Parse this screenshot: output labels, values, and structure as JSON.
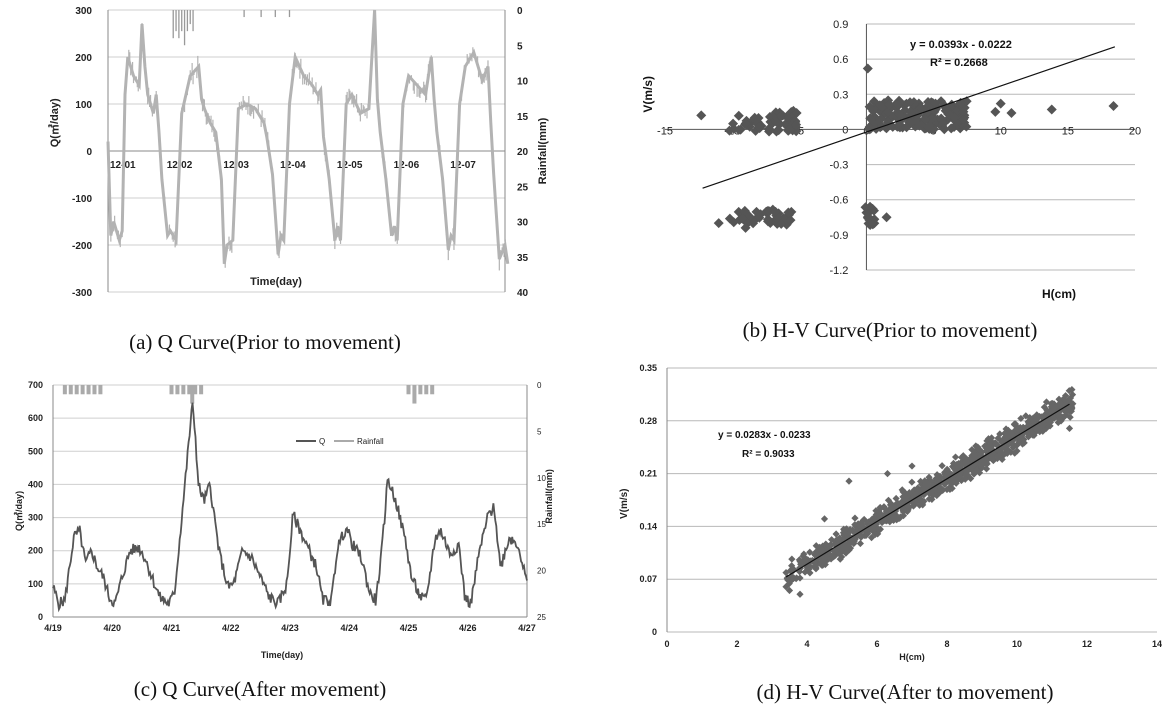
{
  "captions": {
    "a": "(a)  Q  Curve(Prior  to  movement)",
    "b": "(b)  H-V  Curve(Prior  to  movement)",
    "c": "(c)  Q  Curve(After  movement)",
    "d": "(d)  H-V  Curve(After  to  movement)"
  },
  "chart_data": [
    {
      "id": "a",
      "type": "line",
      "xlabel": "Time(day)",
      "ylabel": "Q(㎥/day)",
      "y2label": "Rainfall(mm)",
      "categories": [
        "12-01",
        "12-02",
        "12-03",
        "12-04",
        "12-05",
        "12-06",
        "12-07"
      ],
      "ylim": [
        -300,
        300
      ],
      "yticks": [
        -300,
        -200,
        -100,
        0,
        100,
        200,
        300
      ],
      "y2lim": [
        0,
        40
      ],
      "y2ticks": [
        0,
        5,
        10,
        15,
        20,
        25,
        30,
        35,
        40
      ],
      "grid": true,
      "colors": {
        "q": "#b3b3b3",
        "rain": "#999999"
      },
      "rainfall": [
        {
          "t": 1.15,
          "mm": 4
        },
        {
          "t": 1.2,
          "mm": 3
        },
        {
          "t": 1.25,
          "mm": 4
        },
        {
          "t": 1.3,
          "mm": 3
        },
        {
          "t": 1.35,
          "mm": 5
        },
        {
          "t": 1.4,
          "mm": 3
        },
        {
          "t": 1.45,
          "mm": 2
        },
        {
          "t": 1.5,
          "mm": 3
        },
        {
          "t": 2.4,
          "mm": 1
        },
        {
          "t": 2.7,
          "mm": 1
        },
        {
          "t": 2.95,
          "mm": 1
        },
        {
          "t": 3.2,
          "mm": 1
        }
      ],
      "series": [
        {
          "name": "Q",
          "x": [
            0,
            0.05,
            0.1,
            0.2,
            0.25,
            0.3,
            0.35,
            0.45,
            0.55,
            0.6,
            0.65,
            0.7,
            0.8,
            0.85,
            0.9,
            0.95,
            1.05,
            1.1,
            1.2,
            1.3,
            1.45,
            1.6,
            1.65,
            1.7,
            1.8,
            1.9,
            2.0,
            2.05,
            2.1,
            2.2,
            2.3,
            2.45,
            2.6,
            2.7,
            2.75,
            2.8,
            2.9,
            3.0,
            3.05,
            3.1,
            3.2,
            3.3,
            3.45,
            3.6,
            3.7,
            3.75,
            3.8,
            3.9,
            4.0,
            4.05,
            4.1,
            4.2,
            4.3,
            4.45,
            4.6,
            4.7,
            4.75,
            4.8,
            4.9,
            5.0,
            5.05,
            5.1,
            5.2,
            5.3,
            5.45,
            5.6,
            5.7,
            5.75,
            5.8,
            5.9,
            6.0,
            6.05,
            6.1,
            6.2,
            6.3,
            6.45,
            6.6,
            6.7,
            6.75,
            6.8,
            6.9,
            7.0,
            7.05
          ],
          "y": [
            20,
            -180,
            -150,
            -190,
            -170,
            120,
            200,
            160,
            140,
            270,
            180,
            120,
            80,
            120,
            40,
            -60,
            -180,
            -170,
            -190,
            80,
            160,
            180,
            110,
            90,
            60,
            40,
            -60,
            -240,
            -200,
            -190,
            90,
            100,
            90,
            70,
            60,
            30,
            -50,
            -220,
            -180,
            -190,
            100,
            200,
            160,
            140,
            120,
            130,
            30,
            -60,
            -190,
            -160,
            -190,
            100,
            120,
            80,
            90,
            300,
            110,
            40,
            -60,
            -180,
            -160,
            -190,
            100,
            160,
            140,
            120,
            200,
            110,
            40,
            -60,
            -210,
            -180,
            -190,
            100,
            180,
            210,
            150,
            180,
            60,
            -50,
            -230,
            -200,
            -240
          ]
        }
      ]
    },
    {
      "id": "b",
      "type": "scatter",
      "xlabel": "H(cm)",
      "ylabel": "V(m/s)",
      "xlim": [
        -15,
        20
      ],
      "xticks": [
        -15,
        -10,
        -5,
        0,
        5,
        10,
        15,
        20
      ],
      "ylim": [
        -1.2,
        0.9
      ],
      "yticks": [
        0.9,
        0.6,
        0.3,
        0,
        -0.3,
        -0.6,
        -0.9,
        -1.2
      ],
      "grid": true,
      "trendline": {
        "slope": 0.0393,
        "intercept": -0.0222,
        "x_range": [
          -12.2,
          18.5
        ]
      },
      "annotation": [
        "y = 0.0393x - 0.0222",
        "R² = 0.2668"
      ],
      "marker_color": "#555555",
      "clusters": [
        {
          "x": [
            0.2,
            7.5
          ],
          "y": [
            0.0,
            0.25
          ],
          "n": 180
        },
        {
          "x": [
            -6.8,
            -5.2
          ],
          "y": [
            -0.02,
            0.16
          ],
          "n": 40
        },
        {
          "x": [
            -10.2,
            -6.5
          ],
          "y": [
            -0.02,
            0.12
          ],
          "n": 30
        },
        {
          "x": [
            -10.2,
            -5.5
          ],
          "y": [
            -0.82,
            -0.68
          ],
          "n": 45
        },
        {
          "x": [
            -0.1,
            0.6
          ],
          "y": [
            -0.82,
            -0.65
          ],
          "n": 18
        }
      ],
      "points": [
        [
          -12.3,
          0.12
        ],
        [
          -10.2,
          -0.01
        ],
        [
          18.4,
          0.2
        ],
        [
          13.8,
          0.17
        ],
        [
          10.8,
          0.14
        ],
        [
          9.6,
          0.15
        ],
        [
          10.0,
          0.22
        ],
        [
          0.1,
          0.52
        ],
        [
          1.5,
          -0.75
        ],
        [
          -11.0,
          -0.8
        ],
        [
          -9.0,
          -0.84
        ],
        [
          0.2,
          0.0
        ],
        [
          -7.2,
          0.0
        ],
        [
          -5.2,
          0.14
        ]
      ]
    },
    {
      "id": "c",
      "type": "line",
      "xlabel": "Time(day)",
      "ylabel": "Q(㎥/day)",
      "y2label": "Rainfall(mm)",
      "categories": [
        "4/19",
        "4/20",
        "4/21",
        "4/22",
        "4/23",
        "4/24",
        "4/25",
        "4/26",
        "4/27"
      ],
      "ylim": [
        0,
        700
      ],
      "yticks": [
        0,
        100,
        200,
        300,
        400,
        500,
        600,
        700
      ],
      "y2lim": [
        0,
        25
      ],
      "y2ticks": [
        0,
        5,
        10,
        15,
        20,
        25
      ],
      "grid": true,
      "legend": [
        "Q",
        "Rainfall"
      ],
      "colors": {
        "q": "#555555",
        "rain": "#aaaaaa"
      },
      "rainfall": [
        {
          "t": 0.2,
          "mm": 1
        },
        {
          "t": 0.3,
          "mm": 1
        },
        {
          "t": 0.4,
          "mm": 1
        },
        {
          "t": 0.5,
          "mm": 1
        },
        {
          "t": 0.6,
          "mm": 1
        },
        {
          "t": 0.7,
          "mm": 1
        },
        {
          "t": 0.8,
          "mm": 1
        },
        {
          "t": 2.0,
          "mm": 1
        },
        {
          "t": 2.1,
          "mm": 1
        },
        {
          "t": 2.2,
          "mm": 1
        },
        {
          "t": 2.3,
          "mm": 1
        },
        {
          "t": 2.35,
          "mm": 2
        },
        {
          "t": 2.4,
          "mm": 1
        },
        {
          "t": 2.5,
          "mm": 1
        },
        {
          "t": 6.0,
          "mm": 1
        },
        {
          "t": 6.1,
          "mm": 2
        },
        {
          "t": 6.2,
          "mm": 1
        },
        {
          "t": 6.3,
          "mm": 1
        },
        {
          "t": 6.4,
          "mm": 1
        }
      ],
      "series": [
        {
          "name": "Q",
          "x": [
            0,
            0.1,
            0.2,
            0.35,
            0.45,
            0.55,
            0.65,
            0.75,
            0.85,
            0.95,
            1.05,
            1.15,
            1.3,
            1.45,
            1.55,
            1.65,
            1.8,
            1.95,
            2.05,
            2.2,
            2.35,
            2.4,
            2.45,
            2.55,
            2.65,
            2.8,
            2.95,
            3.05,
            3.2,
            3.35,
            3.45,
            3.55,
            3.65,
            3.8,
            3.95,
            4.05,
            4.2,
            4.35,
            4.45,
            4.55,
            4.7,
            4.8,
            4.95,
            5.05,
            5.2,
            5.35,
            5.45,
            5.55,
            5.65,
            5.8,
            5.95,
            6.05,
            6.2,
            6.3,
            6.45,
            6.55,
            6.7,
            6.85,
            6.95,
            7.05,
            7.2,
            7.35,
            7.45,
            7.55,
            7.7,
            7.85,
            8.0
          ],
          "y": [
            90,
            40,
            50,
            240,
            260,
            160,
            200,
            150,
            120,
            60,
            40,
            110,
            200,
            210,
            180,
            130,
            60,
            40,
            70,
            350,
            640,
            560,
            400,
            350,
            400,
            200,
            90,
            100,
            200,
            180,
            140,
            100,
            60,
            40,
            100,
            310,
            250,
            190,
            150,
            50,
            50,
            210,
            270,
            220,
            180,
            70,
            50,
            200,
            420,
            340,
            230,
            120,
            60,
            50,
            240,
            260,
            190,
            220,
            60,
            40,
            200,
            310,
            330,
            150,
            240,
            220,
            100
          ]
        }
      ]
    },
    {
      "id": "d",
      "type": "scatter",
      "xlabel": "H(cm)",
      "ylabel": "V(m/s)",
      "xlim": [
        0,
        14
      ],
      "xticks": [
        0,
        2,
        4,
        6,
        8,
        10,
        12,
        14
      ],
      "ylim": [
        0,
        0.35
      ],
      "yticks": [
        0,
        0.07,
        0.14,
        0.21,
        0.28,
        0.35
      ],
      "grid": true,
      "trendline": {
        "slope": 0.0283,
        "intercept": -0.0233,
        "x_range": [
          3.4,
          11.5
        ]
      },
      "annotation": [
        "y = 0.0283x - 0.0233",
        "R² = 0.9033"
      ],
      "marker_color": "#666666",
      "band": {
        "x": [
          3.4,
          11.6
        ],
        "spread": 0.016,
        "n": 900
      },
      "points": [
        [
          3.4,
          0.06
        ],
        [
          3.5,
          0.055
        ],
        [
          4.5,
          0.15
        ],
        [
          5.2,
          0.2
        ],
        [
          6.3,
          0.21
        ],
        [
          7.0,
          0.22
        ],
        [
          11.2,
          0.3
        ],
        [
          11.5,
          0.27
        ],
        [
          10.0,
          0.24
        ],
        [
          3.8,
          0.05
        ]
      ]
    }
  ]
}
